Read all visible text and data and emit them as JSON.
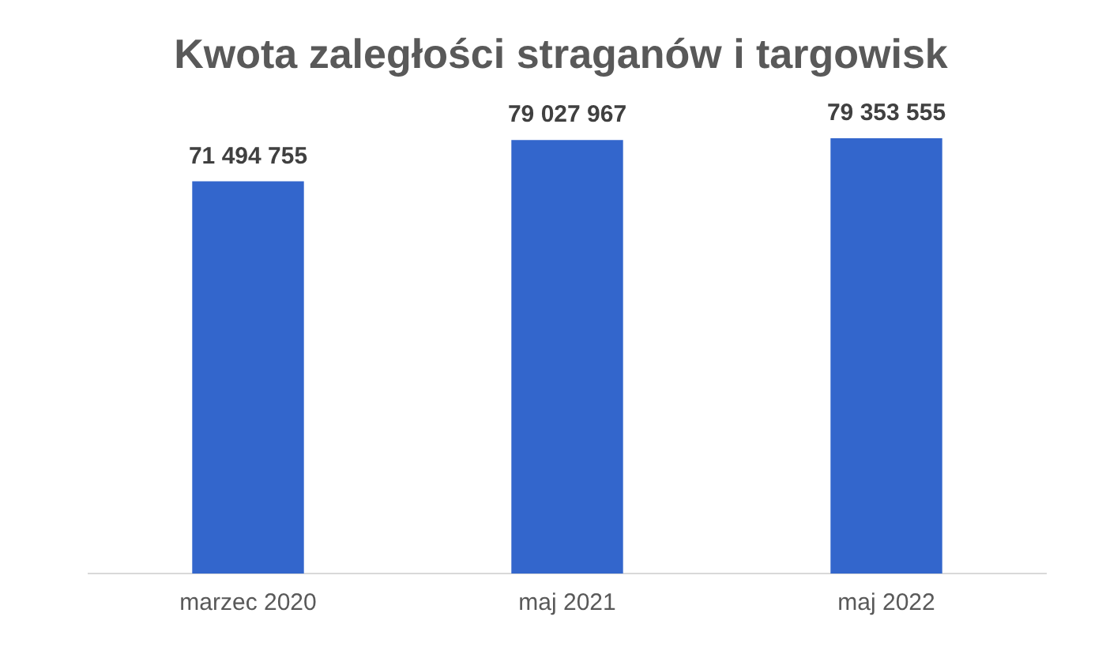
{
  "chart_data": {
    "type": "bar",
    "title": "Kwota zaległości straganów i targowisk",
    "categories": [
      "marzec 2020",
      "maj 2021",
      "maj 2022"
    ],
    "values": [
      71494755,
      79027967,
      79353555
    ],
    "color": "#3366cc",
    "value_labels": [
      "71 494 755",
      "79 027 967",
      "79 353 555"
    ],
    "tick_labels": "x",
    "grid": false,
    "legend": false
  }
}
